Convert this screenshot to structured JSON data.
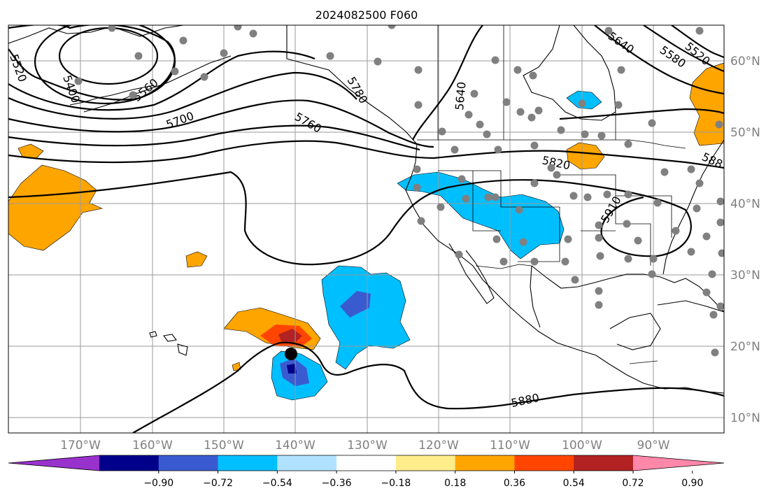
{
  "title": "2024082500 F060",
  "lat_labels": [
    "60°N",
    "50°N",
    "40°N",
    "30°N",
    "20°N",
    "10°N"
  ],
  "lon_labels": [
    "170°W",
    "160°W",
    "150°W",
    "140°W",
    "130°W",
    "120°W",
    "110°W",
    "100°W",
    "90°W"
  ],
  "colorbar": {
    "ticks": [
      "−0.90",
      "−0.72",
      "−0.54",
      "−0.36",
      "−0.18",
      "0.18",
      "0.36",
      "0.54",
      "0.72",
      "0.90"
    ],
    "colors": [
      "#9932cc",
      "#00008b",
      "#3a5bd0",
      "#00bfff",
      "#b0e2ff",
      "#ffffff",
      "#ffec8b",
      "#ffa500",
      "#ff4500",
      "#b22222",
      "#ff88aa"
    ]
  },
  "contour_labels": [
    "5400",
    "5520",
    "5560",
    "5700",
    "5760",
    "5780",
    "5640",
    "5640",
    "5580",
    "5520",
    "5820",
    "5910",
    "5880",
    "588"
  ],
  "colors": {
    "orange": "#ffa500",
    "light_blue": "#00bfff",
    "medium_blue": "#3a5bd0",
    "dark_blue": "#00008b",
    "red": "#ff4500",
    "dark_red": "#b22222",
    "station": "#808080",
    "storm_marker": "#000000"
  }
}
